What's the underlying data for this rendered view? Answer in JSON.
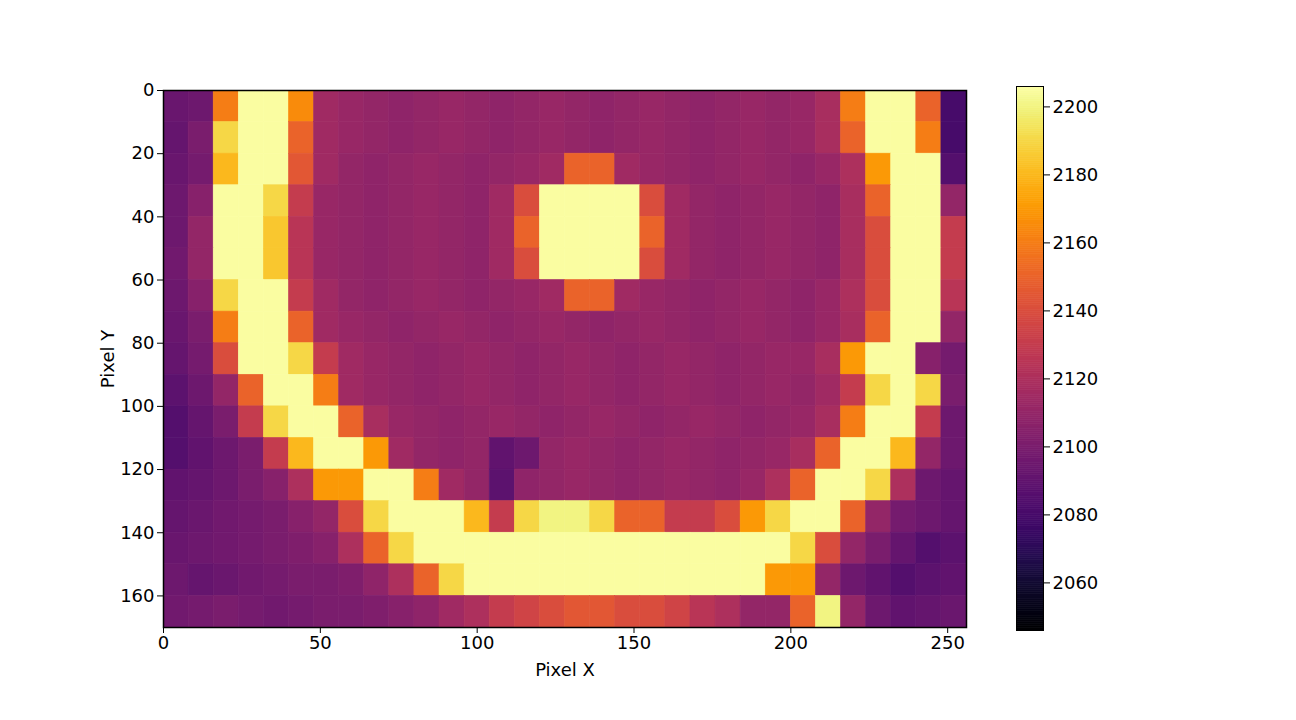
{
  "chart_data": {
    "type": "heatmap",
    "xlabel": "Pixel X",
    "ylabel": "Pixel Y",
    "xlim": [
      0,
      256
    ],
    "ylim": [
      170,
      0
    ],
    "xticks": [
      0,
      50,
      100,
      150,
      200,
      250
    ],
    "yticks": [
      0,
      20,
      40,
      60,
      80,
      100,
      120,
      140,
      160
    ],
    "color": "inferno",
    "colorbar": {
      "range": [
        2046,
        2206
      ],
      "ticks": [
        2060,
        2080,
        2100,
        2120,
        2140,
        2160,
        2180,
        2200
      ]
    },
    "x_bins": [
      0,
      8,
      16,
      24,
      32,
      40,
      48,
      56,
      64,
      72,
      80,
      88,
      96,
      104,
      112,
      120,
      128,
      136,
      144,
      152,
      160,
      168,
      176,
      184,
      192,
      200,
      208,
      216,
      224,
      232,
      240,
      248,
      256
    ],
    "y_bins": [
      0,
      10,
      20,
      30,
      40,
      50,
      60,
      70,
      80,
      90,
      100,
      110,
      120,
      130,
      140,
      150,
      160,
      170
    ],
    "values": [
      [
        2093,
        2095,
        2160,
        2205,
        2205,
        2165,
        2115,
        2112,
        2110,
        2108,
        2110,
        2112,
        2110,
        2108,
        2110,
        2112,
        2110,
        2108,
        2110,
        2112,
        2110,
        2108,
        2110,
        2112,
        2110,
        2112,
        2118,
        2160,
        2205,
        2205,
        2150,
        2080
      ],
      [
        2092,
        2100,
        2190,
        2205,
        2205,
        2150,
        2115,
        2112,
        2110,
        2108,
        2110,
        2112,
        2110,
        2108,
        2110,
        2112,
        2110,
        2108,
        2110,
        2112,
        2110,
        2108,
        2110,
        2112,
        2110,
        2112,
        2118,
        2150,
        2205,
        2205,
        2160,
        2080
      ],
      [
        2093,
        2098,
        2180,
        2205,
        2205,
        2145,
        2115,
        2110,
        2108,
        2110,
        2112,
        2110,
        2108,
        2110,
        2112,
        2115,
        2150,
        2150,
        2115,
        2112,
        2110,
        2108,
        2110,
        2112,
        2110,
        2108,
        2112,
        2120,
        2170,
        2205,
        2205,
        2085
      ],
      [
        2095,
        2105,
        2205,
        2205,
        2190,
        2130,
        2112,
        2110,
        2108,
        2110,
        2112,
        2110,
        2108,
        2115,
        2140,
        2205,
        2205,
        2205,
        2205,
        2140,
        2115,
        2110,
        2108,
        2110,
        2112,
        2110,
        2108,
        2118,
        2150,
        2205,
        2205,
        2110
      ],
      [
        2095,
        2110,
        2205,
        2205,
        2185,
        2125,
        2112,
        2110,
        2108,
        2110,
        2112,
        2110,
        2108,
        2115,
        2150,
        2205,
        2205,
        2205,
        2205,
        2150,
        2115,
        2110,
        2108,
        2110,
        2112,
        2110,
        2108,
        2118,
        2140,
        2205,
        2205,
        2130
      ],
      [
        2096,
        2110,
        2205,
        2205,
        2185,
        2125,
        2112,
        2110,
        2108,
        2110,
        2112,
        2110,
        2108,
        2115,
        2140,
        2205,
        2205,
        2205,
        2205,
        2140,
        2115,
        2110,
        2108,
        2110,
        2112,
        2110,
        2108,
        2118,
        2140,
        2205,
        2205,
        2130
      ],
      [
        2095,
        2105,
        2190,
        2205,
        2205,
        2130,
        2115,
        2110,
        2108,
        2110,
        2112,
        2110,
        2108,
        2110,
        2112,
        2115,
        2150,
        2150,
        2115,
        2112,
        2110,
        2108,
        2110,
        2112,
        2110,
        2108,
        2112,
        2120,
        2140,
        2205,
        2205,
        2125
      ],
      [
        2093,
        2100,
        2160,
        2205,
        2205,
        2150,
        2115,
        2112,
        2110,
        2108,
        2110,
        2112,
        2110,
        2108,
        2110,
        2112,
        2110,
        2108,
        2110,
        2112,
        2110,
        2108,
        2110,
        2112,
        2110,
        2108,
        2112,
        2118,
        2150,
        2205,
        2205,
        2110
      ],
      [
        2092,
        2098,
        2140,
        2205,
        2205,
        2190,
        2130,
        2115,
        2112,
        2110,
        2108,
        2110,
        2112,
        2110,
        2108,
        2110,
        2112,
        2110,
        2108,
        2110,
        2112,
        2110,
        2108,
        2110,
        2112,
        2112,
        2118,
        2170,
        2205,
        2205,
        2105,
        2098
      ],
      [
        2088,
        2095,
        2110,
        2150,
        2205,
        2205,
        2160,
        2115,
        2112,
        2110,
        2108,
        2110,
        2112,
        2110,
        2108,
        2110,
        2112,
        2110,
        2108,
        2110,
        2112,
        2110,
        2108,
        2110,
        2112,
        2110,
        2115,
        2130,
        2190,
        2205,
        2190,
        2100
      ],
      [
        2085,
        2092,
        2100,
        2130,
        2190,
        2205,
        2205,
        2150,
        2118,
        2112,
        2110,
        2108,
        2110,
        2112,
        2110,
        2108,
        2110,
        2112,
        2110,
        2108,
        2110,
        2112,
        2110,
        2108,
        2110,
        2112,
        2118,
        2160,
        2205,
        2205,
        2130,
        2095
      ],
      [
        2085,
        2090,
        2095,
        2100,
        2130,
        2180,
        2205,
        2205,
        2170,
        2115,
        2110,
        2108,
        2110,
        2090,
        2095,
        2110,
        2112,
        2110,
        2108,
        2110,
        2112,
        2110,
        2108,
        2110,
        2112,
        2118,
        2150,
        2205,
        2205,
        2180,
        2110,
        2095
      ],
      [
        2090,
        2092,
        2095,
        2100,
        2105,
        2120,
        2170,
        2170,
        2205,
        2205,
        2160,
        2115,
        2110,
        2088,
        2108,
        2110,
        2112,
        2110,
        2108,
        2110,
        2112,
        2110,
        2108,
        2112,
        2120,
        2150,
        2205,
        2205,
        2190,
        2120,
        2095,
        2092
      ],
      [
        2092,
        2094,
        2096,
        2098,
        2100,
        2105,
        2110,
        2140,
        2190,
        2205,
        2205,
        2205,
        2180,
        2130,
        2190,
        2200,
        2200,
        2190,
        2150,
        2150,
        2130,
        2130,
        2140,
        2170,
        2190,
        2205,
        2205,
        2150,
        2110,
        2098,
        2095,
        2092
      ],
      [
        2093,
        2095,
        2096,
        2098,
        2100,
        2102,
        2105,
        2120,
        2150,
        2190,
        2205,
        2205,
        2205,
        2205,
        2205,
        2205,
        2205,
        2205,
        2205,
        2205,
        2205,
        2205,
        2205,
        2205,
        2205,
        2190,
        2140,
        2110,
        2100,
        2092,
        2085,
        2088
      ],
      [
        2095,
        2092,
        2094,
        2096,
        2098,
        2100,
        2100,
        2102,
        2108,
        2120,
        2150,
        2190,
        2205,
        2205,
        2205,
        2205,
        2205,
        2205,
        2205,
        2205,
        2205,
        2205,
        2205,
        2205,
        2170,
        2170,
        2110,
        2095,
        2090,
        2085,
        2088,
        2090
      ],
      [
        2096,
        2098,
        2100,
        2098,
        2096,
        2098,
        2100,
        2100,
        2102,
        2105,
        2108,
        2115,
        2120,
        2130,
        2135,
        2140,
        2145,
        2145,
        2140,
        2140,
        2135,
        2125,
        2120,
        2110,
        2110,
        2150,
        2200,
        2110,
        2095,
        2090,
        2092,
        2094
      ]
    ]
  }
}
